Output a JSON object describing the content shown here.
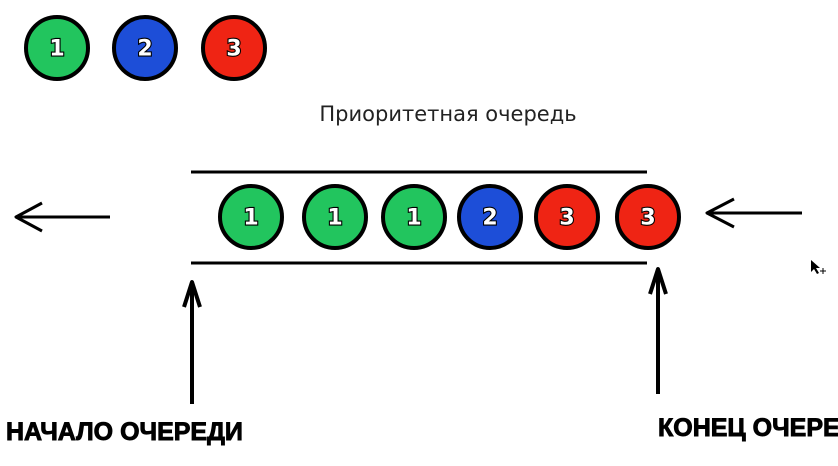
{
  "legend": [
    {
      "number": "1",
      "color": "#22c55e"
    },
    {
      "number": "2",
      "color": "#1d4ed8"
    },
    {
      "number": "3",
      "color": "#ef2414"
    }
  ],
  "title": "Приоритетная очередь",
  "queue": [
    {
      "number": "1",
      "color": "#22c55e"
    },
    {
      "number": "1",
      "color": "#22c55e"
    },
    {
      "number": "1",
      "color": "#22c55e"
    },
    {
      "number": "2",
      "color": "#1d4ed8"
    },
    {
      "number": "3",
      "color": "#ef2414"
    },
    {
      "number": "3",
      "color": "#ef2414"
    }
  ],
  "labels": {
    "start": "НАЧАЛО ОЧЕРЕДИ",
    "end": "КОНЕЦ ОЧЕРЕДИ"
  }
}
